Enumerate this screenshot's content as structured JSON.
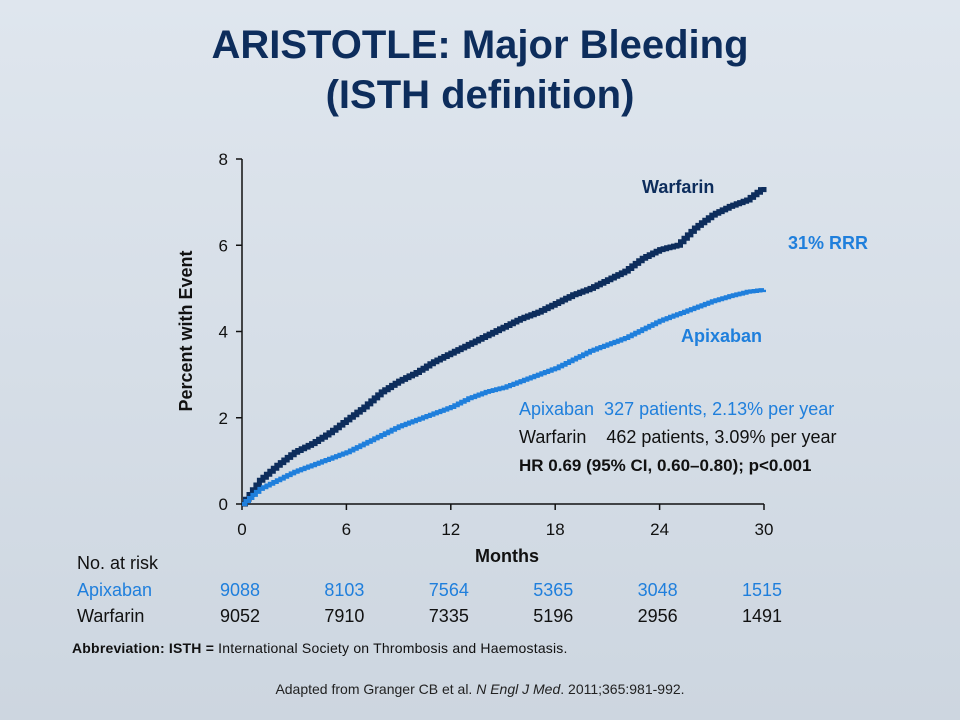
{
  "slide": {
    "title_line1": "ARISTOTLE: Major Bleeding",
    "title_line2": "(ISTH definition)"
  },
  "colors": {
    "warfarin": "#0d2d5c",
    "apixaban": "#1f7fdc",
    "axis": "#111111"
  },
  "chart_data": {
    "type": "line",
    "title": "",
    "xlabel": "Months",
    "ylabel": "Percent with Event",
    "xlim": [
      0,
      30
    ],
    "ylim": [
      0,
      8
    ],
    "x_ticks": [
      0,
      6,
      12,
      18,
      24,
      30
    ],
    "y_ticks": [
      0,
      2,
      4,
      6,
      8
    ],
    "grid": false,
    "series": [
      {
        "name": "Warfarin",
        "color": "#0d2d5c",
        "x": [
          0,
          1,
          2,
          3,
          4,
          5,
          6,
          7,
          8,
          9,
          10,
          11,
          12,
          13,
          14,
          15,
          16,
          17,
          18,
          19,
          20,
          21,
          22,
          23,
          24,
          25,
          26,
          27,
          28,
          29,
          30
        ],
        "y": [
          0,
          0.55,
          0.9,
          1.2,
          1.4,
          1.65,
          1.95,
          2.25,
          2.6,
          2.85,
          3.05,
          3.3,
          3.5,
          3.7,
          3.9,
          4.1,
          4.3,
          4.45,
          4.65,
          4.85,
          5.0,
          5.2,
          5.4,
          5.7,
          5.9,
          6.0,
          6.4,
          6.7,
          6.9,
          7.05,
          7.35
        ]
      },
      {
        "name": "Apixaban",
        "color": "#1f7fdc",
        "x": [
          0,
          1,
          2,
          3,
          4,
          5,
          6,
          7,
          8,
          9,
          10,
          11,
          12,
          13,
          14,
          15,
          16,
          17,
          18,
          19,
          20,
          21,
          22,
          23,
          24,
          25,
          26,
          27,
          28,
          29,
          30
        ],
        "y": [
          0,
          0.35,
          0.55,
          0.75,
          0.9,
          1.05,
          1.2,
          1.4,
          1.6,
          1.8,
          1.95,
          2.1,
          2.25,
          2.45,
          2.6,
          2.7,
          2.85,
          3.0,
          3.15,
          3.35,
          3.55,
          3.7,
          3.85,
          4.05,
          4.25,
          4.4,
          4.55,
          4.7,
          4.82,
          4.92,
          4.97
        ]
      }
    ],
    "series_labels": {
      "warfarin": "Warfarin",
      "apixaban": "Apixaban",
      "rrr": "31% RRR"
    },
    "annotations": {
      "apixaban_stats": "Apixaban  327 patients, 2.13% per year",
      "warfarin_stats": "Warfarin    462 patients, 3.09% per year",
      "hr": "HR 0.69 (95% CI, 0.60–0.80); p<0.001"
    }
  },
  "risk_table": {
    "heading": "No. at risk",
    "rows": [
      {
        "label": "Apixaban",
        "color": "#1f7fdc",
        "values": [
          "9088",
          "8103",
          "7564",
          "5365",
          "3048",
          "1515"
        ]
      },
      {
        "label": "Warfarin",
        "color": "#111111",
        "values": [
          "9052",
          "7910",
          "7335",
          "5196",
          "2956",
          "1491"
        ]
      }
    ]
  },
  "footer": {
    "abbr_label": "Abbreviation:",
    "abbr_term": "ISTH =",
    "abbr_text": "International  Society on Thrombosis and Haemostasis.",
    "source_prefix": "Adapted from Granger CB et al. ",
    "source_journal": "N Engl J Med",
    "source_suffix": ". 2011;365:981-992."
  }
}
